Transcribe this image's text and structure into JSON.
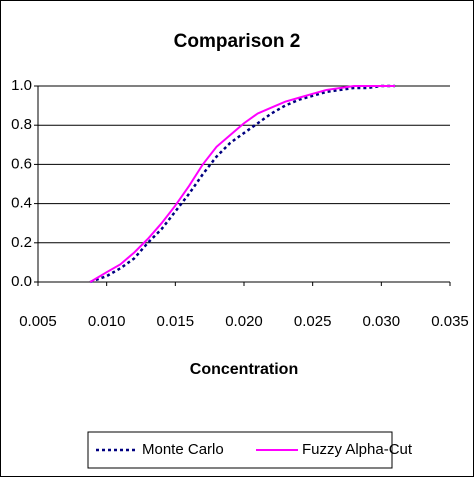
{
  "chart_data": {
    "type": "line",
    "title": "Comparison 2",
    "x_label": "Concentration",
    "x": [
      0.0088,
      0.01,
      0.011,
      0.012,
      0.013,
      0.014,
      0.015,
      0.016,
      0.017,
      0.018,
      0.019,
      0.02,
      0.021,
      0.022,
      0.023,
      0.024,
      0.025,
      0.026,
      0.027,
      0.028,
      0.029,
      0.03,
      0.031
    ],
    "series": [
      {
        "name": "Monte Carlo",
        "color": "#000080",
        "dash": "dotted",
        "values": [
          0,
          0.03,
          0.07,
          0.12,
          0.2,
          0.27,
          0.36,
          0.45,
          0.55,
          0.64,
          0.71,
          0.76,
          0.81,
          0.86,
          0.9,
          0.93,
          0.95,
          0.97,
          0.98,
          0.99,
          0.99,
          1.0,
          1.0
        ]
      },
      {
        "name": "Fuzzy Alpha-Cut",
        "color": "#ff00ff",
        "dash": "solid",
        "values": [
          0,
          0.05,
          0.09,
          0.15,
          0.22,
          0.3,
          0.39,
          0.49,
          0.6,
          0.69,
          0.75,
          0.81,
          0.86,
          0.89,
          0.92,
          0.94,
          0.96,
          0.98,
          0.99,
          1.0,
          1.0,
          1.0,
          1.0
        ]
      }
    ],
    "xlim": [
      0.005,
      0.035
    ],
    "xticks": [
      0.005,
      {
        "value": 0.01,
        "label": "0.010"
      },
      0.015,
      {
        "value": 0.02,
        "label": "0.020"
      },
      0.025,
      {
        "value": 0.03,
        "label": "0.030"
      },
      0.035
    ],
    "ylim": [
      0,
      1
    ],
    "yticks": [
      {
        "value": 0,
        "label": "0.0"
      },
      0.2,
      0.4,
      0.6,
      0.8,
      {
        "value": 1,
        "label": "1.0"
      }
    ],
    "grid": true
  }
}
